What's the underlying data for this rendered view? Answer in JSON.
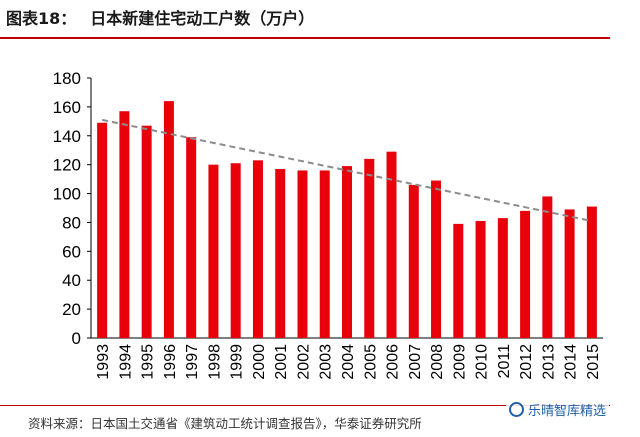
{
  "header": {
    "figure_number": "图表18：",
    "title": "日本新建住宅动工户数（万户）"
  },
  "footer": {
    "source": "资料来源：日本国土交通省《建筑动工统计调查报告》，华泰证券研究所",
    "watermark": "乐晴智库精选"
  },
  "icons": {
    "watermark": "wechat-icon"
  },
  "colors": {
    "bar": "#e8000b",
    "trend": "#8c8c8c",
    "rule": "#c00000"
  },
  "chart_data": {
    "type": "bar",
    "title": "日本新建住宅动工户数（万户）",
    "xlabel": "",
    "ylabel": "",
    "categories": [
      "1993",
      "1994",
      "1995",
      "1996",
      "1997",
      "1998",
      "1999",
      "2000",
      "2001",
      "2002",
      "2003",
      "2004",
      "2005",
      "2006",
      "2007",
      "2008",
      "2009",
      "2010",
      "2011",
      "2012",
      "2013",
      "2014",
      "2015"
    ],
    "series": [
      {
        "values": [
          149,
          157,
          147,
          164,
          139,
          120,
          121,
          123,
          117,
          116,
          116,
          119,
          124,
          129,
          106,
          109,
          79,
          81,
          83,
          88,
          98,
          89,
          91
        ]
      }
    ],
    "trendline": {
      "style": "dashed",
      "start": 151,
      "end": 81
    },
    "ylim": [
      0,
      180
    ],
    "yticks": [
      0,
      20,
      40,
      60,
      80,
      100,
      120,
      140,
      160,
      180
    ],
    "grid": false,
    "legend": "none"
  }
}
